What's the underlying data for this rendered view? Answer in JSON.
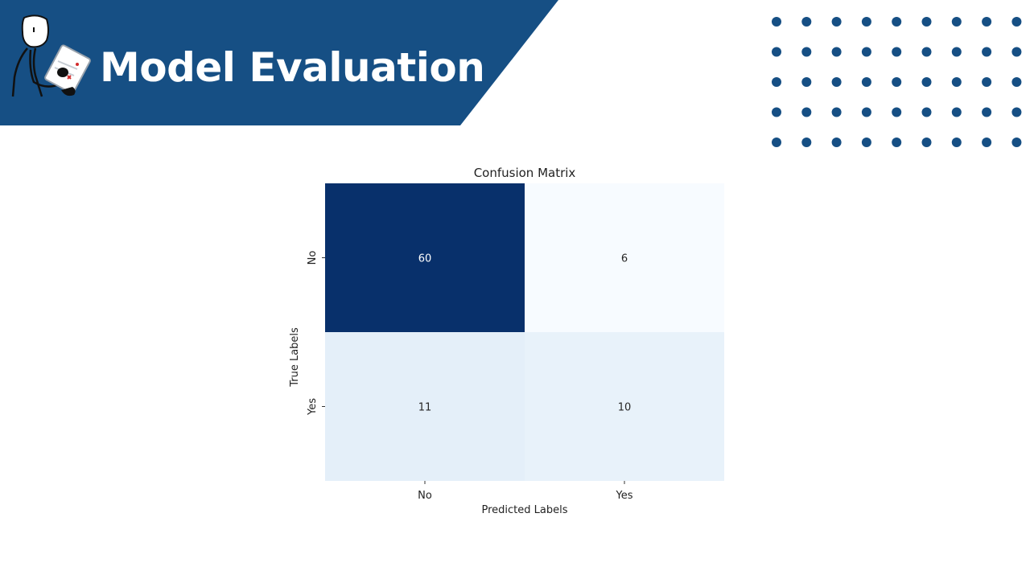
{
  "slide": {
    "title": "Model Evaluation"
  },
  "colors": {
    "banner": "#164f84",
    "dots": "#164f84",
    "dark_cell": "#08306b",
    "mid_cell": "#bfd9ec",
    "light_cell": "#f5f9fe",
    "pale_cell": "#e5eff9"
  },
  "icons": {
    "mascot": "person-with-clipboard-icon",
    "decoration": "dot-grid-decoration"
  },
  "chart_data": {
    "type": "heatmap",
    "title": "Confusion Matrix",
    "xlabel": "Predicted Labels",
    "ylabel": "True Labels",
    "x_categories": [
      "No",
      "Yes"
    ],
    "y_categories": [
      "No",
      "Yes"
    ],
    "values": [
      [
        60,
        6
      ],
      [
        11,
        10
      ]
    ],
    "colormap": "Blues",
    "colorbar": false,
    "annotations": true
  }
}
